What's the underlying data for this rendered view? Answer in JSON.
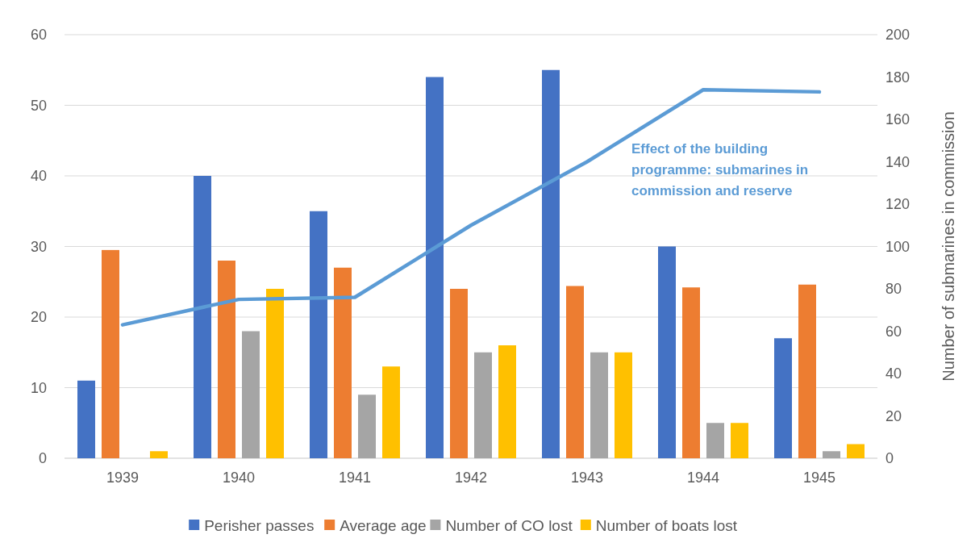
{
  "chart_data": {
    "type": "bar",
    "categories": [
      "1939",
      "1940",
      "1941",
      "1942",
      "1943",
      "1944",
      "1945"
    ],
    "series": [
      {
        "name": "Perisher passes",
        "color": "#4472c4",
        "values": [
          11,
          40,
          35,
          54,
          55,
          30,
          17
        ]
      },
      {
        "name": "Average age",
        "color": "#ed7d31",
        "values": [
          29.5,
          28,
          27,
          24,
          24.4,
          24.2,
          24.6
        ]
      },
      {
        "name": "Number of CO lost",
        "color": "#a5a5a5",
        "values": [
          0,
          18,
          9,
          15,
          15,
          5,
          1
        ]
      },
      {
        "name": "Number of boats lost",
        "color": "#ffc000",
        "values": [
          1,
          24,
          13,
          16,
          15,
          5,
          2
        ]
      },
      {
        "type": "line",
        "axis": "y2",
        "color": "#5b9bd5",
        "values": [
          63,
          75,
          76,
          110,
          140,
          174,
          173
        ]
      }
    ],
    "ylim": [
      0,
      60
    ],
    "yticks": [
      0,
      10,
      20,
      30,
      40,
      50,
      60
    ],
    "y2lim": [
      0,
      200
    ],
    "y2ticks": [
      0,
      20,
      40,
      60,
      80,
      100,
      120,
      140,
      160,
      180,
      200
    ],
    "y2label": "Number of submarines in commission",
    "annotations": [
      "Effect of the building programme: submarines in commission and reserve"
    ],
    "grid": "y",
    "legend": "bottom"
  }
}
